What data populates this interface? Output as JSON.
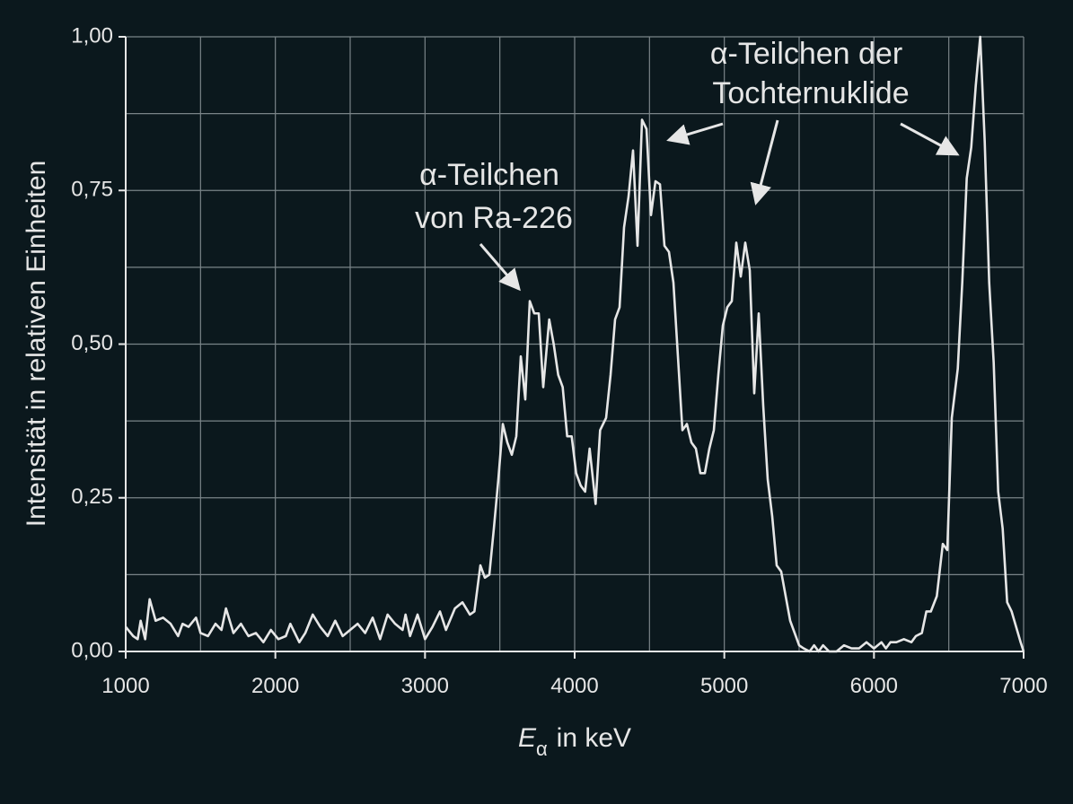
{
  "chart_data": {
    "type": "line",
    "ylabel": "Intensität in relativen Einheiten",
    "xlabel_parts": [
      "E",
      "α",
      "in keV"
    ],
    "annotations": [
      {
        "lines": [
          "α-Teilchen",
          "von Ra-226"
        ]
      },
      {
        "lines": [
          "α-Teilchen der",
          "Tochternuklide"
        ]
      }
    ],
    "xlim": [
      1000,
      7000
    ],
    "ylim": [
      0,
      1
    ],
    "xticks": [
      1000,
      2000,
      3000,
      4000,
      5000,
      6000,
      7000
    ],
    "yticks": [
      {
        "value": 0,
        "label": "0,00"
      },
      {
        "value": 0.25,
        "label": "0,25"
      },
      {
        "value": 0.5,
        "label": "0,50"
      },
      {
        "value": 0.75,
        "label": "0,75"
      },
      {
        "value": 1,
        "label": "1,00"
      }
    ],
    "xgrid": [
      1500,
      2500,
      3500,
      4500,
      5500,
      6500
    ],
    "ygrid": [
      0.125,
      0.375,
      0.625,
      0.875
    ],
    "grid": true,
    "x": [
      1000,
      1050,
      1080,
      1100,
      1130,
      1160,
      1200,
      1250,
      1300,
      1350,
      1380,
      1420,
      1470,
      1500,
      1550,
      1600,
      1640,
      1670,
      1720,
      1770,
      1820,
      1870,
      1920,
      1970,
      2020,
      2070,
      2100,
      2160,
      2200,
      2250,
      2300,
      2350,
      2400,
      2450,
      2500,
      2550,
      2600,
      2650,
      2700,
      2750,
      2800,
      2850,
      2870,
      2900,
      2950,
      3000,
      3050,
      3100,
      3140,
      3200,
      3250,
      3300,
      3330,
      3370,
      3400,
      3430,
      3460,
      3490,
      3520,
      3550,
      3580,
      3610,
      3640,
      3670,
      3700,
      3730,
      3760,
      3790,
      3830,
      3860,
      3890,
      3920,
      3950,
      3980,
      4010,
      4040,
      4070,
      4100,
      4140,
      4170,
      4210,
      4240,
      4270,
      4300,
      4330,
      4360,
      4390,
      4420,
      4450,
      4480,
      4510,
      4540,
      4570,
      4600,
      4630,
      4660,
      4690,
      4720,
      4750,
      4780,
      4810,
      4840,
      4870,
      4900,
      4930,
      4960,
      4990,
      5020,
      5050,
      5080,
      5110,
      5140,
      5170,
      5200,
      5230,
      5260,
      5290,
      5320,
      5350,
      5380,
      5410,
      5440,
      5470,
      5500,
      5530,
      5570,
      5600,
      5630,
      5660,
      5700,
      5750,
      5800,
      5850,
      5900,
      5950,
      6000,
      6050,
      6080,
      6110,
      6150,
      6200,
      6250,
      6280,
      6320,
      6350,
      6380,
      6420,
      6460,
      6490,
      6520,
      6560,
      6590,
      6620,
      6650,
      6680,
      6710,
      6740,
      6770,
      6800,
      6830,
      6860,
      6890,
      6920,
      6950,
      6980,
      7000
    ],
    "series": [
      {
        "color": "#e6e6e6",
        "values": [
          0.04,
          0.025,
          0.02,
          0.05,
          0.02,
          0.085,
          0.05,
          0.055,
          0.045,
          0.025,
          0.045,
          0.04,
          0.055,
          0.03,
          0.025,
          0.045,
          0.035,
          0.07,
          0.03,
          0.045,
          0.025,
          0.03,
          0.015,
          0.035,
          0.02,
          0.025,
          0.045,
          0.015,
          0.03,
          0.06,
          0.04,
          0.025,
          0.05,
          0.025,
          0.035,
          0.045,
          0.03,
          0.055,
          0.02,
          0.06,
          0.045,
          0.035,
          0.06,
          0.025,
          0.06,
          0.02,
          0.04,
          0.065,
          0.035,
          0.07,
          0.08,
          0.06,
          0.065,
          0.14,
          0.12,
          0.125,
          0.2,
          0.28,
          0.37,
          0.34,
          0.32,
          0.35,
          0.48,
          0.41,
          0.57,
          0.55,
          0.55,
          0.43,
          0.54,
          0.5,
          0.45,
          0.43,
          0.35,
          0.35,
          0.29,
          0.27,
          0.26,
          0.33,
          0.24,
          0.36,
          0.38,
          0.45,
          0.54,
          0.56,
          0.69,
          0.74,
          0.815,
          0.66,
          0.865,
          0.85,
          0.71,
          0.765,
          0.76,
          0.66,
          0.65,
          0.6,
          0.48,
          0.36,
          0.37,
          0.34,
          0.33,
          0.29,
          0.29,
          0.33,
          0.36,
          0.45,
          0.53,
          0.56,
          0.57,
          0.665,
          0.61,
          0.665,
          0.62,
          0.42,
          0.55,
          0.4,
          0.28,
          0.22,
          0.14,
          0.13,
          0.09,
          0.05,
          0.03,
          0.01,
          0.005,
          0,
          0.01,
          0,
          0.01,
          0,
          0,
          0.01,
          0.005,
          0.005,
          0.015,
          0.005,
          0.015,
          0.005,
          0.015,
          0.015,
          0.02,
          0.015,
          0.025,
          0.03,
          0.065,
          0.065,
          0.09,
          0.175,
          0.165,
          0.38,
          0.46,
          0.6,
          0.77,
          0.82,
          0.92,
          1,
          0.83,
          0.6,
          0.47,
          0.26,
          0.2,
          0.08,
          0.065,
          0.04,
          0.015,
          0
        ]
      }
    ]
  }
}
